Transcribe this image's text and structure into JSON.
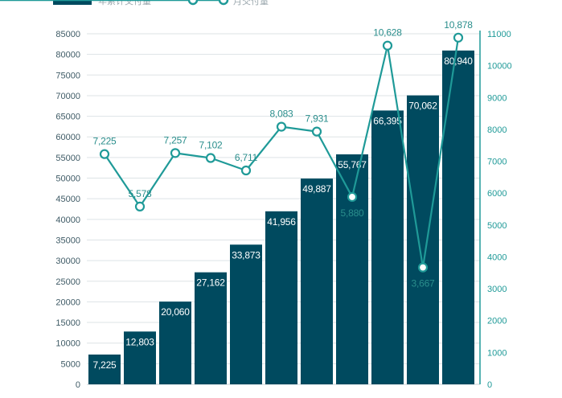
{
  "chart_data": {
    "type": "bar",
    "categories": [
      "",
      "",
      "",
      "",
      "",
      "",
      "",
      "",
      "",
      "",
      ""
    ],
    "series": [
      {
        "name": "年累计交付量",
        "type": "bar",
        "axis": "left",
        "color": "#004a5f",
        "values": [
          7225,
          12803,
          20060,
          27162,
          33873,
          41956,
          49887,
          55767,
          66395,
          70062,
          80940
        ],
        "labels": [
          "7,225",
          "12,803",
          "20,060",
          "27,162",
          "33,873",
          "41,956",
          "49,887",
          "55,767",
          "66,395",
          "70,062",
          "80,940"
        ]
      },
      {
        "name": "月交付量",
        "type": "line",
        "axis": "right",
        "color": "#1f9a98",
        "values": [
          7225,
          5578,
          7257,
          7102,
          6711,
          8083,
          7931,
          5880,
          10628,
          3667,
          10878
        ],
        "labels": [
          "7,225",
          "5,578",
          "7,257",
          "7,102",
          "6,711",
          "8,083",
          "7,931",
          "5,880",
          "10,628",
          "3,667",
          "10,878"
        ]
      }
    ],
    "y_left": {
      "ylim": [
        0,
        85000
      ],
      "ticks": [
        "0",
        "5000",
        "10000",
        "15000",
        "20000",
        "25000",
        "30000",
        "35000",
        "40000",
        "45000",
        "50000",
        "55000",
        "60000",
        "65000",
        "70000",
        "75000",
        "80000",
        "85000"
      ]
    },
    "y_right": {
      "ylim": [
        0,
        11000
      ],
      "ticks": [
        "0",
        "1000",
        "2000",
        "3000",
        "4000",
        "5000",
        "6000",
        "7000",
        "8000",
        "9000",
        "10000",
        "11000"
      ]
    },
    "grid": true,
    "legend_position": "top",
    "colors": {
      "bar": "#004a5f",
      "line": "#1f9a98",
      "grid": "#dde3e6"
    }
  }
}
